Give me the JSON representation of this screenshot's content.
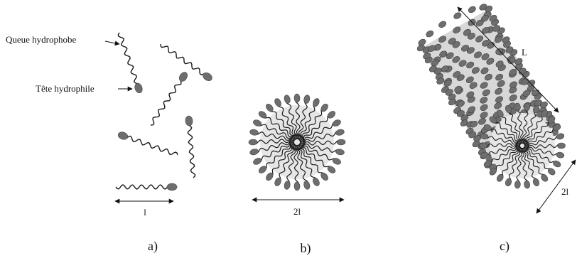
{
  "panel_a": {
    "tail_label": "Queue hydrophobe",
    "head_label": "Tête hydrophile",
    "length_label": "l",
    "caption": "a)"
  },
  "panel_b": {
    "diameter_label": "2l",
    "caption": "b)"
  },
  "panel_c": {
    "length_label": "L",
    "diameter_label": "2l",
    "caption": "c)"
  },
  "colors": {
    "head_fill": "#6e6e6e",
    "tail_stroke": "#1a1a1a",
    "core_fill": "#e6e6e6"
  }
}
